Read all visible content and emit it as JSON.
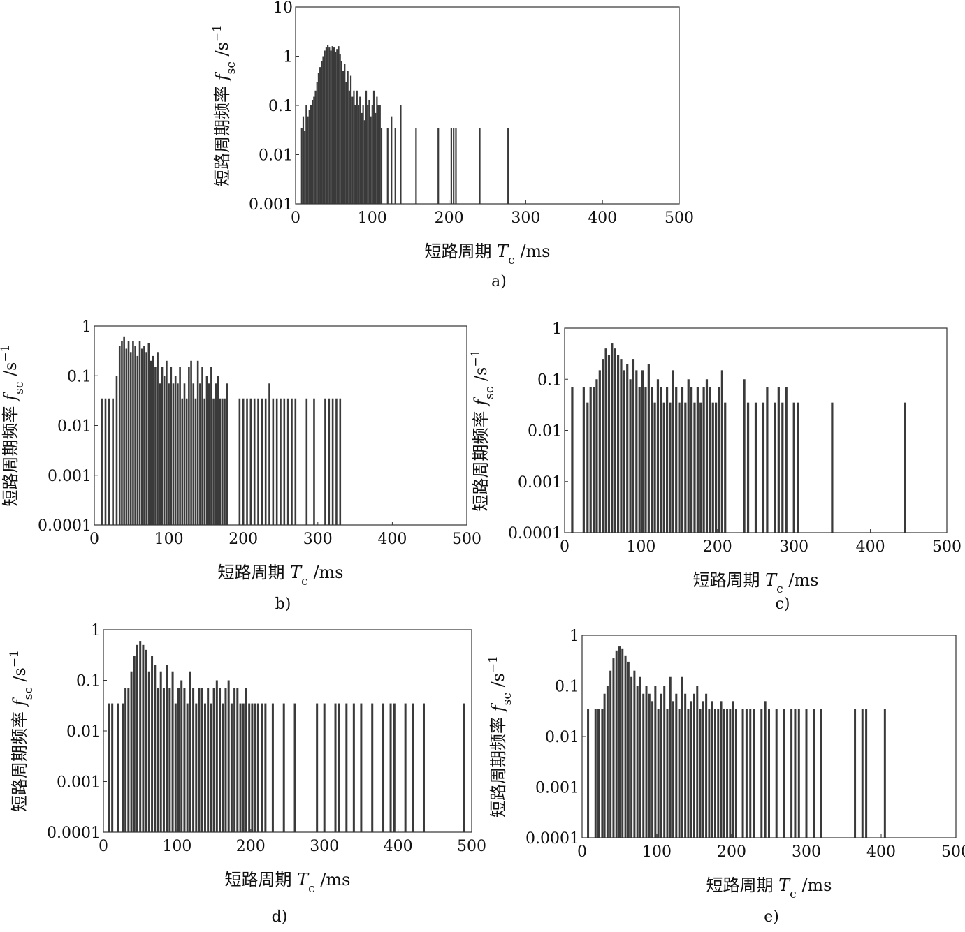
{
  "chart_data": [
    {
      "panel": "a)",
      "type": "bar",
      "xlabel": "短路周期 T_c /ms",
      "ylabel": "短路周期频率 f_sc /s^-1",
      "xlim": [
        0,
        500
      ],
      "ylim": [
        0.001,
        10
      ],
      "yscale": "log",
      "xticks": [
        "0",
        "100",
        "200",
        "300",
        "400",
        "500"
      ],
      "yticks": [
        "0.001",
        "0.01",
        "0.1",
        "1",
        "10"
      ],
      "x": [
        8,
        10,
        12,
        14,
        16,
        18,
        20,
        22,
        24,
        26,
        28,
        30,
        32,
        34,
        36,
        38,
        40,
        42,
        44,
        46,
        48,
        50,
        52,
        54,
        56,
        58,
        60,
        62,
        64,
        66,
        68,
        70,
        72,
        74,
        76,
        78,
        80,
        82,
        84,
        86,
        88,
        90,
        92,
        94,
        96,
        98,
        100,
        102,
        104,
        106,
        108,
        110,
        112,
        120,
        125,
        130,
        137,
        157,
        186,
        203,
        206,
        209,
        240,
        277
      ],
      "values": [
        0.035,
        0.06,
        0.03,
        0.1,
        0.06,
        0.08,
        0.1,
        0.13,
        0.15,
        0.2,
        0.3,
        0.45,
        0.6,
        0.8,
        1.0,
        1.3,
        1.5,
        1.7,
        1.5,
        1.3,
        1.6,
        1.5,
        1.2,
        1.4,
        1.6,
        1.1,
        0.8,
        0.5,
        0.7,
        0.3,
        0.5,
        0.2,
        0.4,
        0.15,
        0.2,
        0.1,
        0.2,
        0.1,
        0.15,
        0.07,
        0.1,
        0.05,
        0.2,
        0.1,
        0.13,
        0.06,
        0.1,
        0.2,
        0.07,
        0.15,
        0.1,
        0.1,
        0.035,
        0.035,
        0.06,
        0.035,
        0.1,
        0.035,
        0.035,
        0.035,
        0.035,
        0.035,
        0.035,
        0.035
      ]
    },
    {
      "panel": "b)",
      "type": "bar",
      "xlabel": "短路周期 T_c /ms",
      "ylabel": "短路周期频率 f_sc /s^-1",
      "xlim": [
        0,
        500
      ],
      "ylim": [
        0.0001,
        1
      ],
      "yscale": "log",
      "xticks": [
        "0",
        "100",
        "200",
        "300",
        "400",
        "500"
      ],
      "yticks": [
        "0.0001",
        "0.001",
        "0.01",
        "0.1",
        "1"
      ],
      "x": [
        10,
        15,
        20,
        25,
        30,
        34,
        37,
        40,
        43,
        46,
        49,
        52,
        55,
        58,
        61,
        64,
        67,
        70,
        73,
        76,
        79,
        82,
        85,
        88,
        91,
        94,
        97,
        100,
        103,
        106,
        109,
        112,
        115,
        118,
        121,
        124,
        127,
        130,
        133,
        136,
        139,
        142,
        145,
        148,
        151,
        154,
        157,
        160,
        163,
        166,
        169,
        172,
        175,
        178,
        195,
        200,
        205,
        210,
        215,
        220,
        225,
        230,
        235,
        240,
        245,
        250,
        255,
        260,
        265,
        270,
        285,
        295,
        310,
        315,
        320,
        325,
        330
      ],
      "values": [
        0.035,
        0.035,
        0.035,
        0.035,
        0.1,
        0.4,
        0.5,
        0.6,
        0.35,
        0.5,
        0.3,
        0.5,
        0.4,
        0.25,
        0.5,
        0.35,
        0.4,
        0.3,
        0.45,
        0.2,
        0.25,
        0.15,
        0.3,
        0.07,
        0.15,
        0.1,
        0.2,
        0.07,
        0.15,
        0.07,
        0.1,
        0.07,
        0.15,
        0.035,
        0.07,
        0.035,
        0.15,
        0.2,
        0.07,
        0.035,
        0.2,
        0.07,
        0.15,
        0.035,
        0.1,
        0.07,
        0.15,
        0.035,
        0.07,
        0.1,
        0.035,
        0.035,
        0.035,
        0.07,
        0.035,
        0.035,
        0.035,
        0.035,
        0.035,
        0.035,
        0.035,
        0.035,
        0.07,
        0.035,
        0.035,
        0.035,
        0.035,
        0.035,
        0.035,
        0.035,
        0.035,
        0.035,
        0.035,
        0.035,
        0.035,
        0.035,
        0.035
      ]
    },
    {
      "panel": "c)",
      "type": "bar",
      "xlabel": "短路周期 T_c /ms",
      "ylabel": "短路周期频率 f_sc /s^-1",
      "xlim": [
        0,
        500
      ],
      "ylim": [
        0.0001,
        1
      ],
      "yscale": "log",
      "xticks": [
        "0",
        "100",
        "200",
        "300",
        "400",
        "500"
      ],
      "yticks": [
        "0.0001",
        "0.001",
        "0.01",
        "0.1",
        "1"
      ],
      "x": [
        10,
        25,
        30,
        34,
        38,
        42,
        46,
        50,
        54,
        58,
        62,
        66,
        70,
        74,
        78,
        82,
        86,
        90,
        94,
        98,
        102,
        106,
        110,
        114,
        118,
        122,
        126,
        130,
        134,
        138,
        142,
        146,
        150,
        154,
        158,
        162,
        166,
        170,
        174,
        178,
        182,
        186,
        190,
        194,
        198,
        202,
        206,
        210,
        235,
        240,
        250,
        260,
        265,
        275,
        280,
        285,
        290,
        300,
        305,
        350,
        445
      ],
      "values": [
        0.07,
        0.07,
        0.035,
        0.07,
        0.07,
        0.1,
        0.15,
        0.25,
        0.4,
        0.3,
        0.5,
        0.4,
        0.3,
        0.25,
        0.15,
        0.2,
        0.1,
        0.25,
        0.15,
        0.07,
        0.15,
        0.07,
        0.2,
        0.07,
        0.035,
        0.1,
        0.07,
        0.035,
        0.07,
        0.035,
        0.15,
        0.07,
        0.035,
        0.07,
        0.035,
        0.1,
        0.07,
        0.035,
        0.07,
        0.035,
        0.07,
        0.1,
        0.07,
        0.035,
        0.035,
        0.07,
        0.15,
        0.035,
        0.1,
        0.035,
        0.035,
        0.035,
        0.07,
        0.035,
        0.07,
        0.035,
        0.07,
        0.035,
        0.035,
        0.035,
        0.035
      ]
    },
    {
      "panel": "d)",
      "type": "bar",
      "xlabel": "短路周期 T_c /ms",
      "ylabel": "短路周期频率 f_sc /s^-1",
      "xlim": [
        0,
        500
      ],
      "ylim": [
        0.0001,
        1
      ],
      "yscale": "log",
      "xticks": [
        "0",
        "100",
        "200",
        "300",
        "400",
        "500"
      ],
      "yticks": [
        "0.0001",
        "0.001",
        "0.01",
        "0.1",
        "1"
      ],
      "x": [
        8,
        12,
        20,
        27,
        30,
        34,
        38,
        42,
        46,
        50,
        54,
        58,
        62,
        66,
        70,
        74,
        78,
        82,
        86,
        90,
        94,
        98,
        102,
        106,
        110,
        114,
        118,
        122,
        126,
        130,
        134,
        138,
        142,
        146,
        150,
        154,
        158,
        162,
        166,
        170,
        174,
        178,
        182,
        186,
        190,
        194,
        198,
        202,
        206,
        210,
        215,
        220,
        230,
        245,
        260,
        290,
        300,
        315,
        320,
        330,
        340,
        350,
        365,
        380,
        390,
        395,
        410,
        420,
        435,
        490
      ],
      "values": [
        0.035,
        0.035,
        0.035,
        0.035,
        0.07,
        0.07,
        0.15,
        0.3,
        0.5,
        0.6,
        0.5,
        0.4,
        0.15,
        0.3,
        0.2,
        0.07,
        0.15,
        0.07,
        0.2,
        0.07,
        0.15,
        0.035,
        0.07,
        0.1,
        0.07,
        0.035,
        0.15,
        0.07,
        0.035,
        0.07,
        0.07,
        0.035,
        0.07,
        0.035,
        0.07,
        0.1,
        0.07,
        0.035,
        0.07,
        0.1,
        0.035,
        0.07,
        0.07,
        0.035,
        0.035,
        0.07,
        0.035,
        0.035,
        0.035,
        0.035,
        0.035,
        0.035,
        0.035,
        0.035,
        0.035,
        0.035,
        0.035,
        0.035,
        0.035,
        0.035,
        0.035,
        0.035,
        0.035,
        0.035,
        0.035,
        0.035,
        0.035,
        0.035,
        0.035,
        0.035
      ]
    },
    {
      "panel": "e)",
      "type": "bar",
      "xlabel": "短路周期 T_c /ms",
      "ylabel": "短路周期频率 f_sc /s^-1",
      "xlim": [
        0,
        500
      ],
      "ylim": [
        0.0001,
        1
      ],
      "yscale": "log",
      "xticks": [
        "0",
        "100",
        "200",
        "300",
        "400",
        "500"
      ],
      "yticks": [
        "0.0001",
        "0.001",
        "0.01",
        "0.1",
        "1"
      ],
      "x": [
        8,
        18,
        22,
        27,
        30,
        34,
        38,
        42,
        46,
        50,
        54,
        58,
        62,
        66,
        70,
        74,
        78,
        82,
        86,
        90,
        94,
        98,
        102,
        106,
        110,
        114,
        118,
        122,
        126,
        130,
        134,
        138,
        142,
        146,
        150,
        154,
        158,
        162,
        166,
        170,
        174,
        178,
        182,
        186,
        190,
        194,
        198,
        202,
        206,
        215,
        220,
        225,
        230,
        240,
        245,
        250,
        260,
        270,
        280,
        285,
        290,
        300,
        310,
        320,
        365,
        375,
        380,
        405
      ],
      "values": [
        0.035,
        0.035,
        0.035,
        0.035,
        0.07,
        0.1,
        0.2,
        0.35,
        0.5,
        0.6,
        0.55,
        0.4,
        0.3,
        0.15,
        0.2,
        0.1,
        0.15,
        0.07,
        0.1,
        0.07,
        0.05,
        0.1,
        0.035,
        0.07,
        0.1,
        0.035,
        0.15,
        0.05,
        0.07,
        0.035,
        0.15,
        0.07,
        0.035,
        0.05,
        0.07,
        0.1,
        0.035,
        0.05,
        0.07,
        0.035,
        0.05,
        0.035,
        0.035,
        0.05,
        0.035,
        0.035,
        0.035,
        0.05,
        0.035,
        0.035,
        0.035,
        0.035,
        0.035,
        0.035,
        0.05,
        0.035,
        0.035,
        0.035,
        0.035,
        0.035,
        0.035,
        0.035,
        0.035,
        0.035,
        0.035,
        0.035,
        0.035,
        0.035
      ]
    }
  ]
}
